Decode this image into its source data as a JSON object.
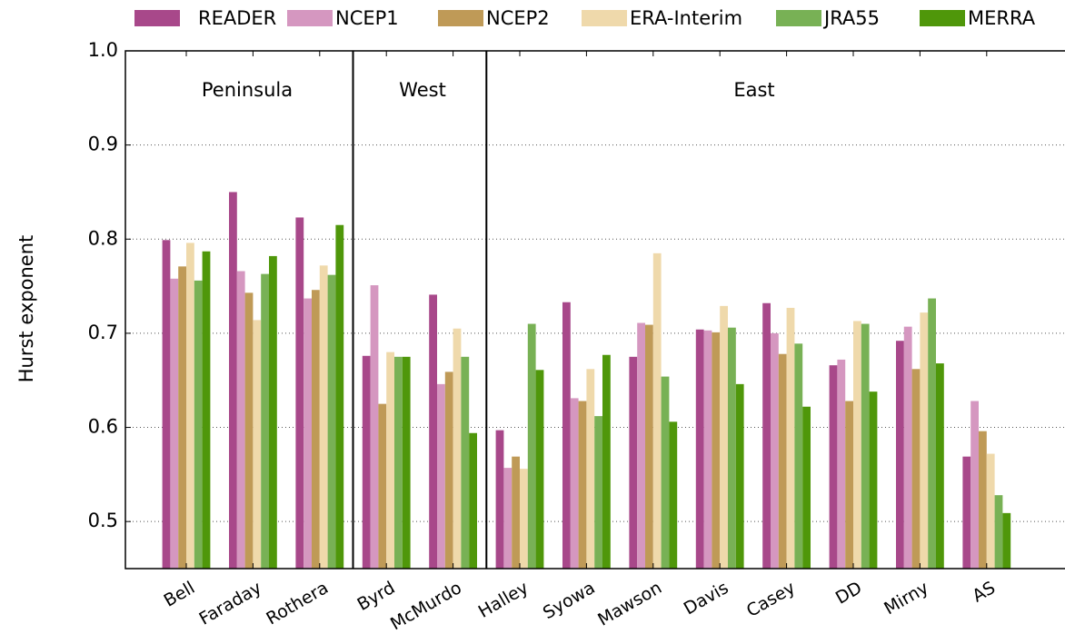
{
  "chart_data": {
    "type": "bar",
    "y_label": "Hurst exponent",
    "regions": [
      "Peninsula",
      "West",
      "East"
    ],
    "categories": [
      "Bell",
      "Faraday",
      "Rothera",
      "Byrd",
      "McMurdo",
      "Halley",
      "Syowa",
      "Mawson",
      "Davis",
      "Casey",
      "DD",
      "Mirny",
      "AS"
    ],
    "series": [
      {
        "name": "READER",
        "color": "#a8488a",
        "values": [
          0.799,
          0.85,
          0.823,
          0.676,
          0.741,
          0.597,
          0.733,
          0.675,
          0.704,
          0.732,
          0.666,
          0.692,
          0.569
        ]
      },
      {
        "name": "NCEP1",
        "color": "#d597c0",
        "values": [
          0.758,
          0.766,
          0.737,
          0.751,
          0.646,
          0.557,
          0.631,
          0.711,
          0.703,
          0.7,
          0.672,
          0.707,
          0.628
        ]
      },
      {
        "name": "NCEP2",
        "color": "#bf9a57",
        "values": [
          0.771,
          0.743,
          0.746,
          0.625,
          0.659,
          0.569,
          0.628,
          0.709,
          0.701,
          0.678,
          0.628,
          0.662,
          0.596
        ]
      },
      {
        "name": "ERA-Interim",
        "color": "#efd9ab",
        "values": [
          0.796,
          0.714,
          0.772,
          0.68,
          0.705,
          0.556,
          0.662,
          0.785,
          0.729,
          0.727,
          0.713,
          0.722,
          0.572
        ]
      },
      {
        "name": "JRA55",
        "color": "#78b155",
        "values": [
          0.756,
          0.763,
          0.762,
          0.675,
          0.675,
          0.71,
          0.612,
          0.654,
          0.706,
          0.689,
          0.71,
          0.737,
          0.528
        ]
      },
      {
        "name": "MERRA",
        "color": "#4f970a",
        "values": [
          0.787,
          0.782,
          0.815,
          0.675,
          0.594,
          0.661,
          0.677,
          0.606,
          0.646,
          0.622,
          0.638,
          0.668,
          0.509
        ]
      }
    ],
    "ylim": [
      0.45,
      1.0
    ],
    "yticks": [
      0.5,
      0.6,
      0.7,
      0.8,
      0.9,
      {
        "value": 1,
        "label": "1.0"
      }
    ],
    "grid": true
  }
}
